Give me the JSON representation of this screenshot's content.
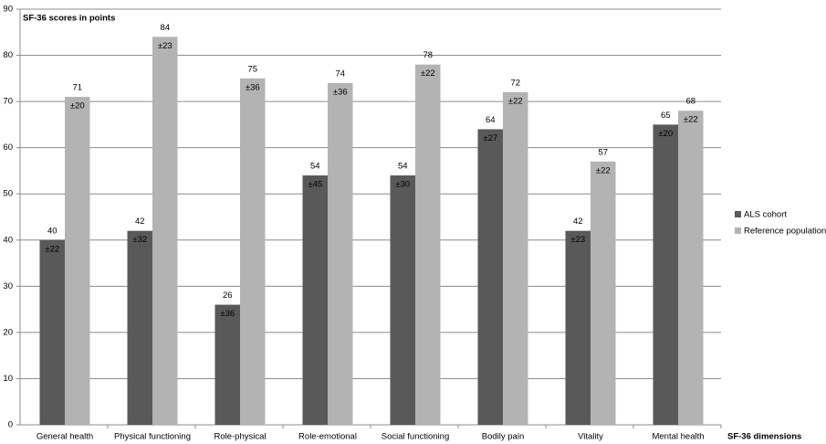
{
  "chart_data": {
    "type": "bar",
    "y_label": "SF-36 scores in points",
    "x_label": "SF-36 dimensions",
    "categories": [
      "General health",
      "Physical functioning",
      "Role-physical",
      "Role-emotional",
      "Social functioning",
      "Bodily pain",
      "Vitality",
      "Mental health"
    ],
    "series": [
      {
        "name": "ALS cohort",
        "color": "#595959",
        "values": [
          40,
          42,
          26,
          54,
          54,
          64,
          42,
          65
        ],
        "error_labels": [
          "±22",
          "±32",
          "±36",
          "±45",
          "±30",
          "±27",
          "±23",
          "±20"
        ]
      },
      {
        "name": "Reference population",
        "color": "#b3b3b3",
        "values": [
          71,
          84,
          75,
          74,
          78,
          72,
          57,
          68
        ],
        "error_labels": [
          "±20",
          "±23",
          "±36",
          "±36",
          "±22",
          "±22",
          "±22",
          "±22"
        ]
      }
    ],
    "ylim": [
      0,
      90
    ],
    "yticks": [
      0,
      10,
      20,
      30,
      40,
      50,
      60,
      70,
      80,
      90
    ],
    "grid": true,
    "legend": "right"
  }
}
